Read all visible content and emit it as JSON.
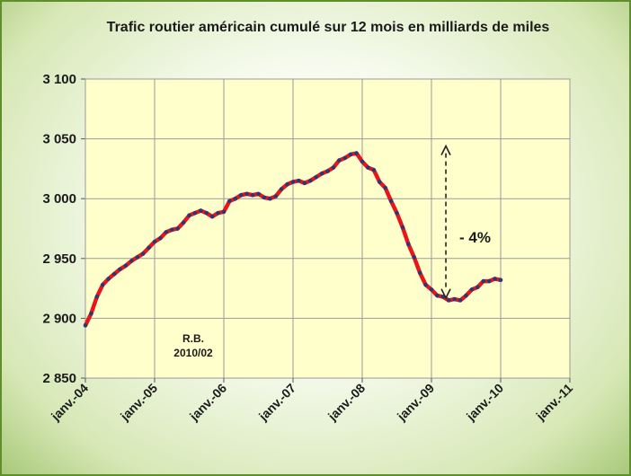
{
  "chart_data": {
    "type": "line",
    "title": "Trafic routier américain cumulé sur 12 mois en milliards de miles",
    "xlabel": "",
    "ylabel": "",
    "ylim": [
      2850,
      3100
    ],
    "yticks": [
      "3 100",
      "3 050",
      "3 000",
      "2 950",
      "2 900",
      "2 850"
    ],
    "ytick_values": [
      3100,
      3050,
      3000,
      2950,
      2900,
      2850
    ],
    "xticks": [
      "janv.-04",
      "janv.-05",
      "janv.-06",
      "janv.-07",
      "janv.-08",
      "janv.-09",
      "janv.-10",
      "janv.-11"
    ],
    "grid": true,
    "series": [
      {
        "start": "2004-01",
        "frequency": "monthly",
        "values": [
          2894,
          2904,
          2918,
          2928,
          2933,
          2937,
          2941,
          2944,
          2948,
          2951,
          2954,
          2959,
          2964,
          2967,
          2972,
          2974,
          2975,
          2980,
          2986,
          2988,
          2990,
          2988,
          2985,
          2988,
          2989,
          2998,
          3000,
          3003,
          3004,
          3003,
          3004,
          3001,
          3000,
          3002,
          3008,
          3012,
          3014,
          3015,
          3013,
          3015,
          3018,
          3021,
          3023,
          3026,
          3032,
          3034,
          3037,
          3038,
          3031,
          3026,
          3024,
          3014,
          3009,
          2998,
          2988,
          2976,
          2962,
          2951,
          2938,
          2928,
          2924,
          2919,
          2918,
          2915,
          2916,
          2915,
          2919,
          2924,
          2926,
          2931,
          2931,
          2933,
          2932
        ]
      }
    ],
    "annotations": {
      "author": "R.B.",
      "date": "2010/02",
      "change_label": "- 4%"
    },
    "colors": {
      "line": "#e8151b",
      "markers": "#283878",
      "plot_background": "#ffffcc",
      "frame": "#5f8f2a"
    }
  }
}
